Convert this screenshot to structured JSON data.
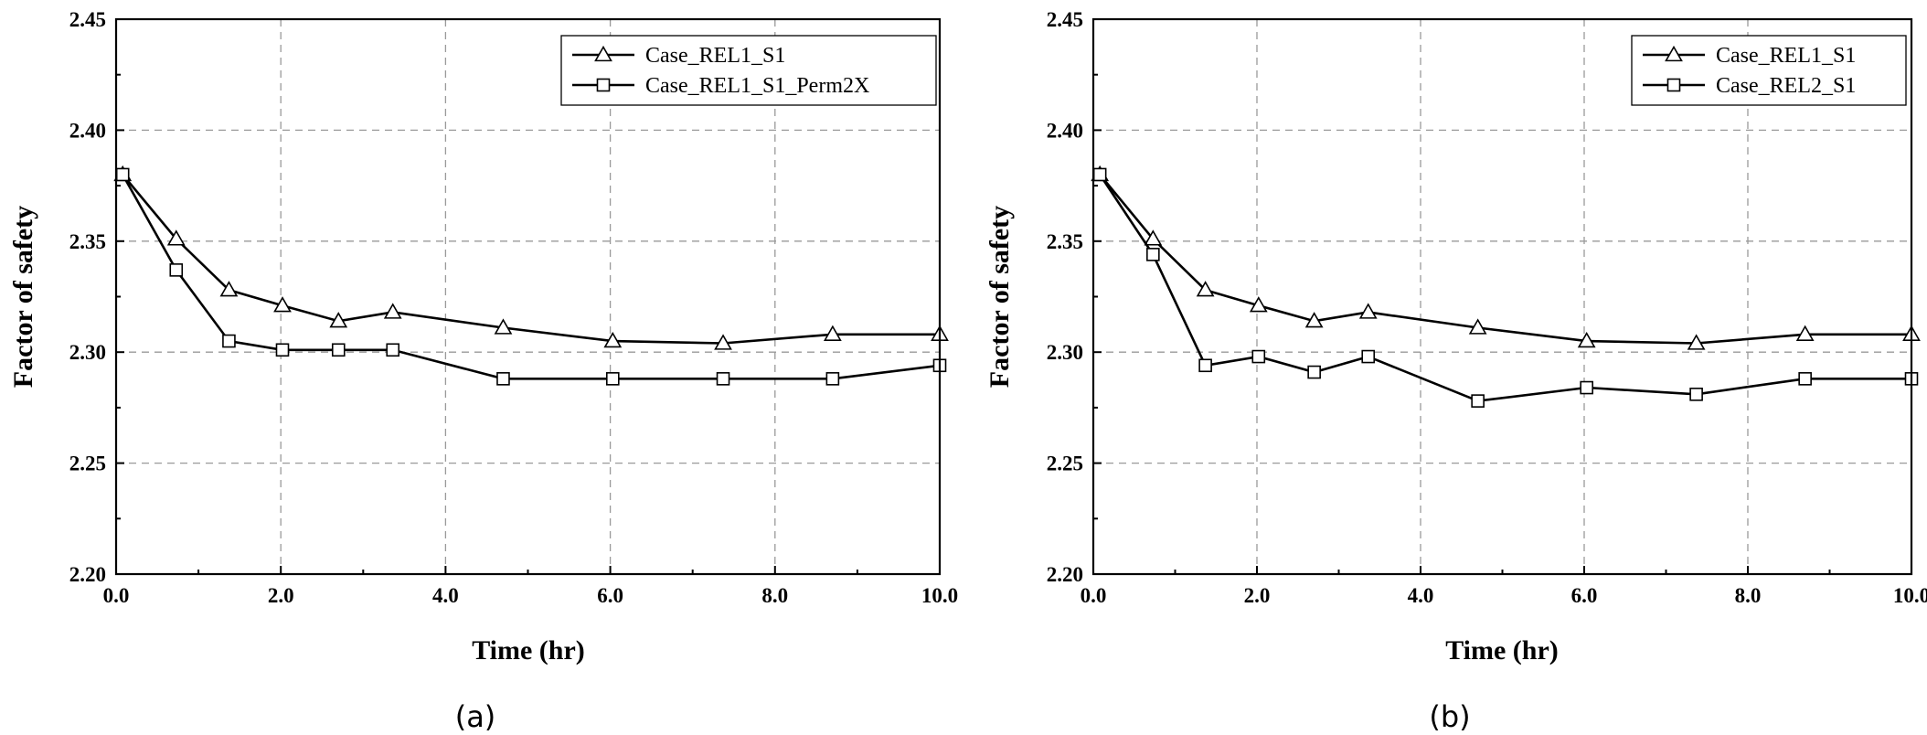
{
  "chart_data": [
    {
      "type": "line",
      "panel_label": "(a)",
      "xlabel": "Time (hr)",
      "ylabel": "Factor of safety",
      "xlim": [
        0.0,
        10.0
      ],
      "ylim": [
        2.2,
        2.45
      ],
      "xticks": [
        "0.0",
        "2.0",
        "4.0",
        "6.0",
        "8.0",
        "10.0"
      ],
      "yticks": [
        "2.20",
        "2.25",
        "2.30",
        "2.35",
        "2.40",
        "2.45"
      ],
      "grid": true,
      "legend_position": "top-right",
      "series": [
        {
          "name": "Case_REL1_S1",
          "marker": "triangle",
          "x": [
            0.08,
            0.73,
            1.37,
            2.02,
            2.7,
            3.36,
            4.7,
            6.03,
            7.37,
            8.7,
            10.0
          ],
          "y": [
            2.38,
            2.351,
            2.328,
            2.321,
            2.314,
            2.318,
            2.311,
            2.305,
            2.304,
            2.308,
            2.308
          ]
        },
        {
          "name": "Case_REL1_S1_Perm2X",
          "marker": "square",
          "x": [
            0.08,
            0.73,
            1.37,
            2.02,
            2.7,
            3.36,
            4.7,
            6.03,
            7.37,
            8.7,
            10.0
          ],
          "y": [
            2.38,
            2.337,
            2.305,
            2.301,
            2.301,
            2.301,
            2.288,
            2.288,
            2.288,
            2.288,
            2.294
          ]
        }
      ]
    },
    {
      "type": "line",
      "panel_label": "(b)",
      "xlabel": "Time (hr)",
      "ylabel": "Factor of safety",
      "xlim": [
        0.0,
        10.0
      ],
      "ylim": [
        2.2,
        2.45
      ],
      "xticks": [
        "0.0",
        "2.0",
        "4.0",
        "6.0",
        "8.0",
        "10.0"
      ],
      "yticks": [
        "2.20",
        "2.25",
        "2.30",
        "2.35",
        "2.40",
        "2.45"
      ],
      "grid": true,
      "legend_position": "top-right",
      "series": [
        {
          "name": "Case_REL1_S1",
          "marker": "triangle",
          "x": [
            0.08,
            0.73,
            1.37,
            2.02,
            2.7,
            3.36,
            4.7,
            6.03,
            7.37,
            8.7,
            10.0
          ],
          "y": [
            2.38,
            2.351,
            2.328,
            2.321,
            2.314,
            2.318,
            2.311,
            2.305,
            2.304,
            2.308,
            2.308
          ]
        },
        {
          "name": "Case_REL2_S1",
          "marker": "square",
          "x": [
            0.08,
            0.73,
            1.37,
            2.02,
            2.7,
            3.36,
            4.7,
            6.03,
            7.37,
            8.7,
            10.0
          ],
          "y": [
            2.38,
            2.344,
            2.294,
            2.298,
            2.291,
            2.298,
            2.278,
            2.284,
            2.281,
            2.288,
            2.288
          ]
        }
      ]
    }
  ]
}
